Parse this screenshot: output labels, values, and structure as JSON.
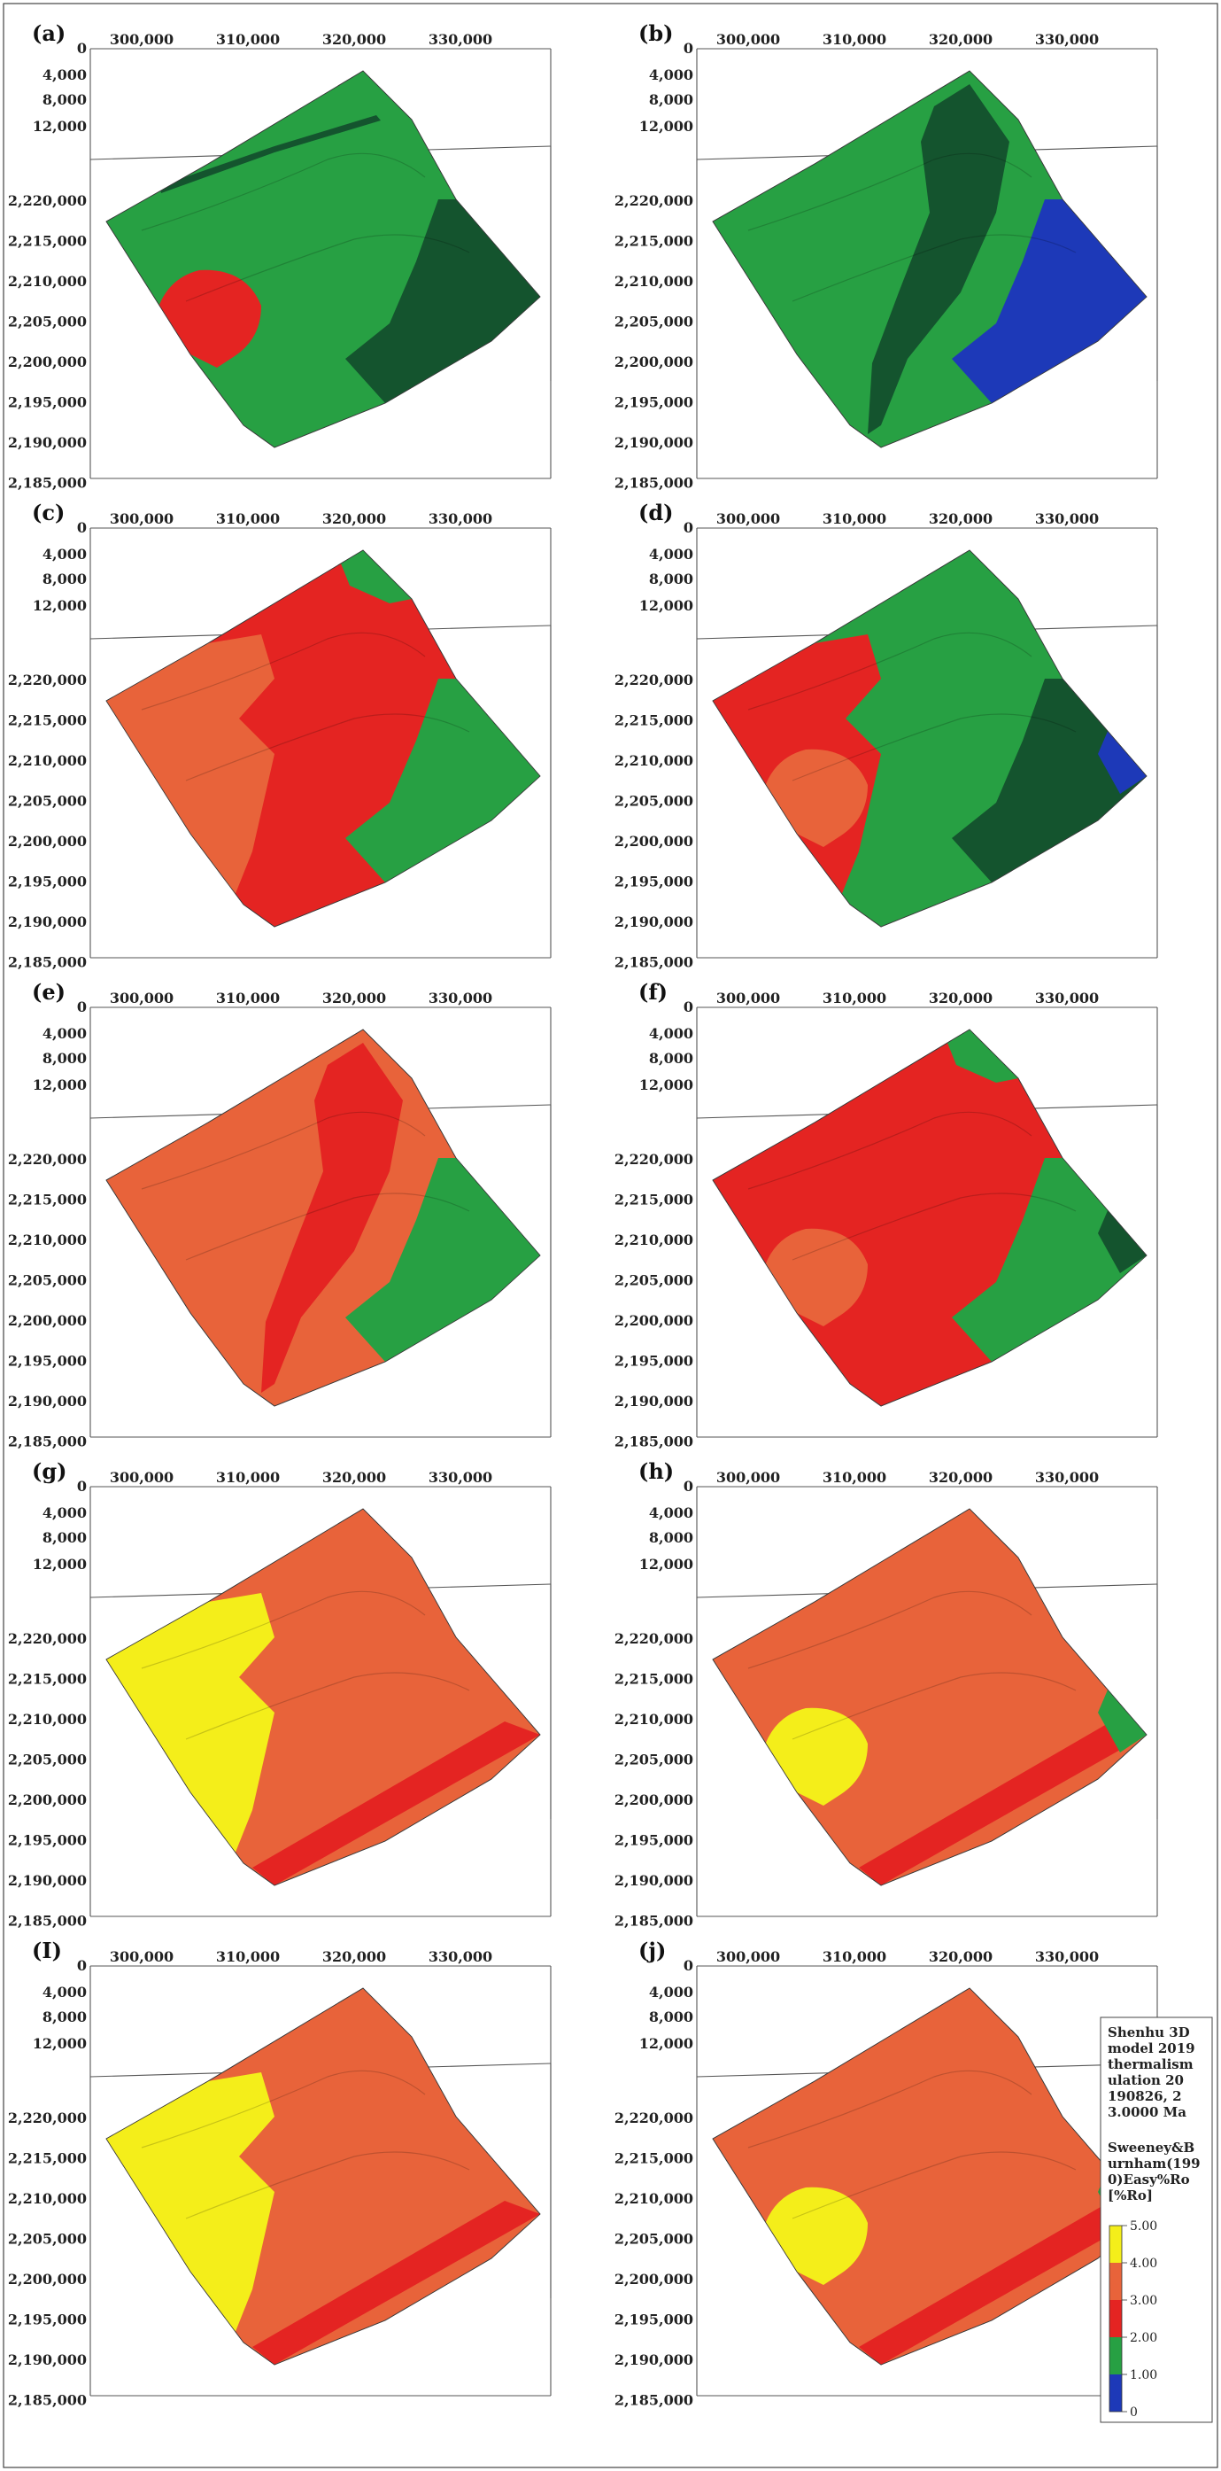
{
  "axes": {
    "x_ticks": [
      "300,000",
      "310,000",
      "320,000",
      "330,000"
    ],
    "depth_ticks": [
      "0",
      "4,000",
      "8,000",
      "12,000"
    ],
    "y_ticks": [
      "2,220,000",
      "2,215,000",
      "2,210,000",
      "2,205,000",
      "2,200,000",
      "2,195,000",
      "2,190,000",
      "2,185,000"
    ]
  },
  "colors": {
    "yellow": "#f4ee1a",
    "orange": "#e8633a",
    "red": "#e42422",
    "green": "#27a043",
    "dark_green": "#14542e",
    "blue": "#1d39b8"
  },
  "panels": [
    {
      "label": "(a)",
      "base": "green",
      "regions": [
        {
          "shape": "ridge",
          "color": "dark_green"
        },
        {
          "shape": "east",
          "color": "dark_green"
        },
        {
          "shape": "west_small",
          "color": "red"
        }
      ]
    },
    {
      "label": "(b)",
      "base": "green",
      "regions": [
        {
          "shape": "center_band",
          "color": "dark_green"
        },
        {
          "shape": "east",
          "color": "blue"
        }
      ]
    },
    {
      "label": "(c)",
      "base": "red",
      "regions": [
        {
          "shape": "west",
          "color": "orange"
        },
        {
          "shape": "east",
          "color": "green"
        },
        {
          "shape": "north_tip",
          "color": "green"
        }
      ]
    },
    {
      "label": "(d)",
      "base": "green",
      "regions": [
        {
          "shape": "west",
          "color": "red"
        },
        {
          "shape": "west_small",
          "color": "orange"
        },
        {
          "shape": "east",
          "color": "dark_green"
        },
        {
          "shape": "east_tip",
          "color": "blue"
        }
      ]
    },
    {
      "label": "(e)",
      "base": "orange",
      "regions": [
        {
          "shape": "center_band",
          "color": "red"
        },
        {
          "shape": "east",
          "color": "green"
        }
      ]
    },
    {
      "label": "(f)",
      "base": "red",
      "regions": [
        {
          "shape": "west_small",
          "color": "orange"
        },
        {
          "shape": "east",
          "color": "green"
        },
        {
          "shape": "north_tip",
          "color": "green"
        },
        {
          "shape": "east_tip",
          "color": "dark_green"
        }
      ]
    },
    {
      "label": "(g)",
      "base": "orange",
      "regions": [
        {
          "shape": "west",
          "color": "yellow"
        },
        {
          "shape": "south_strip",
          "color": "red"
        }
      ]
    },
    {
      "label": "(h)",
      "base": "orange",
      "regions": [
        {
          "shape": "west_small",
          "color": "yellow"
        },
        {
          "shape": "south_strip",
          "color": "red"
        },
        {
          "shape": "east_tip",
          "color": "green"
        }
      ]
    },
    {
      "label": "(I)",
      "base": "orange",
      "regions": [
        {
          "shape": "west",
          "color": "yellow"
        },
        {
          "shape": "south_strip",
          "color": "red"
        }
      ]
    },
    {
      "label": "(j)",
      "base": "orange",
      "regions": [
        {
          "shape": "west_small",
          "color": "yellow"
        },
        {
          "shape": "south_strip",
          "color": "red"
        },
        {
          "shape": "east_tip",
          "color": "green"
        }
      ]
    }
  ],
  "legend": {
    "title_lines": [
      "Shenhu 3D",
      "model 2019",
      "thermalism",
      "ulation 20",
      "190826, 2",
      "3.0000 Ma"
    ],
    "subtitle_lines": [
      "Sweeney&B",
      "urnham(199",
      "0)Easy%Ro",
      "[%Ro]"
    ],
    "ticks": [
      "5.00",
      "4.00",
      "3.00",
      "2.00",
      "1.00",
      "0"
    ],
    "colors": [
      "#f4ee1a",
      "#e8633a",
      "#e42422",
      "#27a043",
      "#1d39b8"
    ]
  }
}
